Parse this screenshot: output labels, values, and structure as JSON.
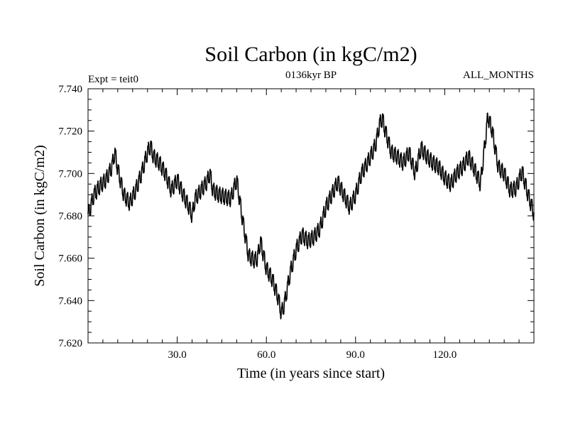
{
  "chart_data": {
    "type": "line",
    "title": "Soil Carbon (in kgC/m2)",
    "subtitle": "0136kyr BP",
    "left_label": "Expt = teit0",
    "right_label": "ALL_MONTHS",
    "xlabel": "Time (in years since start)",
    "ylabel": "Soil Carbon (in kgC/m2)",
    "xlim": [
      0,
      150
    ],
    "ylim": [
      7.62,
      7.74
    ],
    "x_ticks": [
      30,
      60,
      90,
      120
    ],
    "x_tick_labels": [
      "30.0",
      "60.0",
      "90.0",
      "120.0"
    ],
    "y_ticks": [
      7.62,
      7.64,
      7.66,
      7.68,
      7.7,
      7.72,
      7.74
    ],
    "y_tick_labels": [
      "7.620",
      "7.640",
      "7.660",
      "7.680",
      "7.700",
      "7.720",
      "7.740"
    ],
    "line_color": "#000000",
    "series": [
      {
        "name": "Soil Carbon",
        "x": [
          0,
          2,
          4,
          6,
          8,
          9,
          10,
          12,
          14,
          16,
          18,
          20,
          21,
          22,
          24,
          26,
          28,
          30,
          32,
          34,
          35,
          36,
          38,
          40,
          41,
          42,
          44,
          46,
          48,
          50,
          52,
          54,
          56,
          57,
          58,
          60,
          62,
          64,
          65,
          66,
          68,
          70,
          72,
          74,
          76,
          78,
          80,
          82,
          84,
          86,
          88,
          90,
          92,
          94,
          96,
          97,
          98,
          99,
          100,
          102,
          104,
          106,
          108,
          110,
          112,
          114,
          116,
          118,
          120,
          122,
          124,
          126,
          128,
          130,
          132,
          134,
          134.5,
          136,
          138,
          140,
          142,
          144,
          146,
          148,
          150
        ],
        "y": [
          7.68,
          7.69,
          7.694,
          7.697,
          7.703,
          7.71,
          7.702,
          7.69,
          7.686,
          7.692,
          7.7,
          7.71,
          7.713,
          7.708,
          7.705,
          7.7,
          7.692,
          7.697,
          7.69,
          7.684,
          7.68,
          7.688,
          7.692,
          7.696,
          7.7,
          7.692,
          7.69,
          7.689,
          7.688,
          7.697,
          7.678,
          7.661,
          7.659,
          7.66,
          7.668,
          7.655,
          7.65,
          7.641,
          7.634,
          7.638,
          7.653,
          7.664,
          7.671,
          7.668,
          7.67,
          7.674,
          7.684,
          7.69,
          7.696,
          7.69,
          7.684,
          7.69,
          7.7,
          7.705,
          7.711,
          7.715,
          7.723,
          7.726,
          7.72,
          7.71,
          7.708,
          7.705,
          7.71,
          7.7,
          7.712,
          7.708,
          7.705,
          7.703,
          7.698,
          7.695,
          7.7,
          7.703,
          7.708,
          7.702,
          7.695,
          7.72,
          7.727,
          7.72,
          7.703,
          7.7,
          7.692,
          7.693,
          7.701,
          7.69,
          7.681
        ]
      }
    ]
  }
}
